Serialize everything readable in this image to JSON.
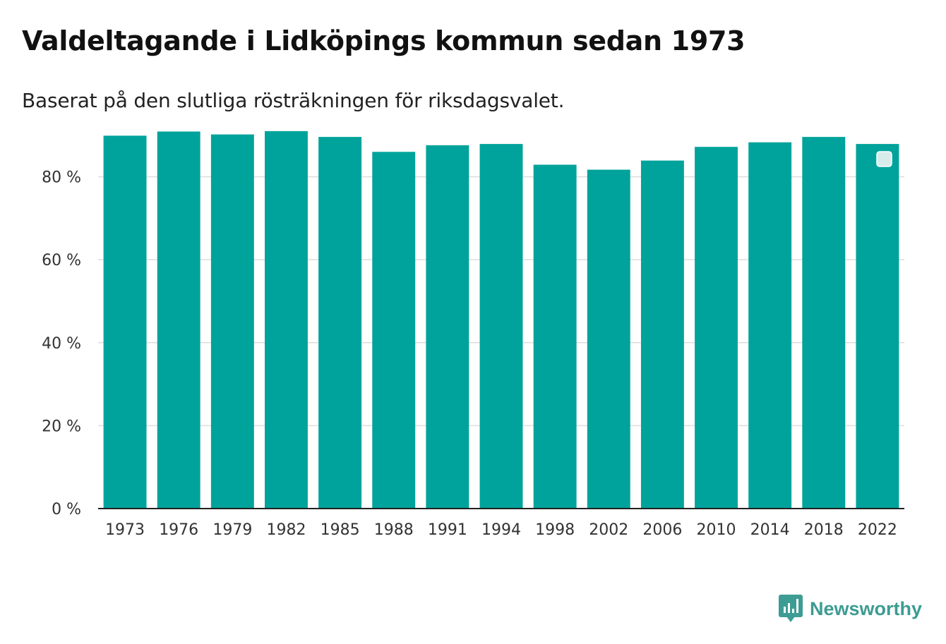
{
  "title": "Valdeltagande i Lidköpings kommun sedan 1973",
  "subtitle": "Baserat på den slutliga rösträkningen för riksdagsvalet.",
  "brand": {
    "name": "Newsworthy",
    "icon": "newsworthy-logo-icon",
    "color": "#3d9c93"
  },
  "colors": {
    "bar": "#00a39b",
    "grid": "#dddddd",
    "axis": "#222222"
  },
  "chart_data": {
    "type": "bar",
    "title": "Valdeltagande i Lidköpings kommun sedan 1973",
    "subtitle": "Baserat på den slutliga rösträkningen för riksdagsvalet.",
    "xlabel": "",
    "ylabel": "",
    "categories": [
      "1973",
      "1976",
      "1979",
      "1982",
      "1985",
      "1988",
      "1991",
      "1994",
      "1998",
      "2002",
      "2006",
      "2010",
      "2014",
      "2018",
      "2022"
    ],
    "values": [
      89.9,
      90.9,
      90.2,
      91.0,
      89.6,
      86.0,
      87.6,
      87.9,
      82.9,
      81.7,
      83.9,
      87.2,
      88.3,
      89.6,
      87.9
    ],
    "ylim": [
      0,
      92
    ],
    "yticks": [
      0,
      20,
      40,
      60,
      80
    ],
    "ytick_labels": [
      "0 %",
      "20 %",
      "40 %",
      "60 %",
      "80 %"
    ],
    "grid": true,
    "legend": "none"
  }
}
